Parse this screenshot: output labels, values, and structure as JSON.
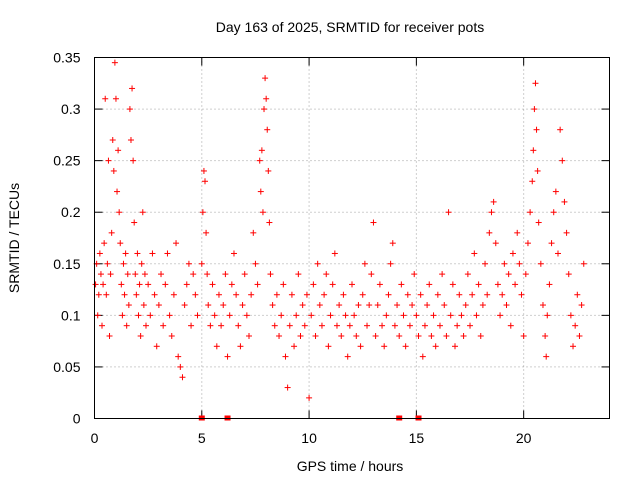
{
  "chart_data": {
    "type": "scatter",
    "title": "Day 163 of 2025, SRMTID for receiver pots",
    "xlabel": "GPS time / hours",
    "ylabel": "SRMTID / TECUs",
    "xlim": [
      0,
      24
    ],
    "ylim": [
      0,
      0.35
    ],
    "x_ticks": [
      0,
      5,
      10,
      15,
      20
    ],
    "x_tick_labels": [
      "0",
      "5",
      "10",
      "15",
      "20"
    ],
    "y_ticks": [
      0,
      0.05,
      0.1,
      0.15,
      0.2,
      0.25,
      0.3,
      0.35
    ],
    "y_tick_labels": [
      "0",
      "0.05",
      "0.1",
      "0.15",
      "0.2",
      "0.25",
      "0.3",
      "0.35"
    ],
    "grid": true,
    "marker": "+",
    "color": "#ff0000",
    "series": [
      {
        "name": "SRMTID",
        "points": [
          [
            0.05,
            0.13
          ],
          [
            0.1,
            0.15
          ],
          [
            0.15,
            0.1
          ],
          [
            0.2,
            0.12
          ],
          [
            0.25,
            0.16
          ],
          [
            0.3,
            0.14
          ],
          [
            0.35,
            0.09
          ],
          [
            0.4,
            0.13
          ],
          [
            0.45,
            0.17
          ],
          [
            0.5,
            0.31
          ],
          [
            0.55,
            0.12
          ],
          [
            0.6,
            0.15
          ],
          [
            0.65,
            0.25
          ],
          [
            0.7,
            0.08
          ],
          [
            0.75,
            0.14
          ],
          [
            0.8,
            0.18
          ],
          [
            0.85,
            0.27
          ],
          [
            0.9,
            0.24
          ],
          [
            0.95,
            0.345
          ],
          [
            1.0,
            0.31
          ],
          [
            1.05,
            0.22
          ],
          [
            1.1,
            0.26
          ],
          [
            1.15,
            0.2
          ],
          [
            1.2,
            0.17
          ],
          [
            1.25,
            0.13
          ],
          [
            1.3,
            0.1
          ],
          [
            1.35,
            0.15
          ],
          [
            1.4,
            0.12
          ],
          [
            1.45,
            0.16
          ],
          [
            1.5,
            0.09
          ],
          [
            1.55,
            0.14
          ],
          [
            1.6,
            0.11
          ],
          [
            1.65,
            0.3
          ],
          [
            1.7,
            0.27
          ],
          [
            1.75,
            0.32
          ],
          [
            1.8,
            0.25
          ],
          [
            1.85,
            0.19
          ],
          [
            1.9,
            0.14
          ],
          [
            1.95,
            0.12
          ],
          [
            2.0,
            0.16
          ],
          [
            2.05,
            0.1
          ],
          [
            2.1,
            0.13
          ],
          [
            2.15,
            0.08
          ],
          [
            2.2,
            0.15
          ],
          [
            2.25,
            0.2
          ],
          [
            2.3,
            0.11
          ],
          [
            2.35,
            0.14
          ],
          [
            2.4,
            0.09
          ],
          [
            2.5,
            0.13
          ],
          [
            2.6,
            0.1
          ],
          [
            2.7,
            0.16
          ],
          [
            2.8,
            0.12
          ],
          [
            2.9,
            0.07
          ],
          [
            3.0,
            0.11
          ],
          [
            3.1,
            0.14
          ],
          [
            3.2,
            0.09
          ],
          [
            3.3,
            0.13
          ],
          [
            3.4,
            0.16
          ],
          [
            3.5,
            0.1
          ],
          [
            3.6,
            0.08
          ],
          [
            3.7,
            0.12
          ],
          [
            3.8,
            0.17
          ],
          [
            3.9,
            0.06
          ],
          [
            4.0,
            0.05
          ],
          [
            4.1,
            0.04
          ],
          [
            4.2,
            0.11
          ],
          [
            4.3,
            0.13
          ],
          [
            4.4,
            0.15
          ],
          [
            4.5,
            0.09
          ],
          [
            4.6,
            0.14
          ],
          [
            4.7,
            0.12
          ],
          [
            4.8,
            0.1
          ],
          [
            5.0,
            0.15
          ],
          [
            5.05,
            0.2
          ],
          [
            5.1,
            0.24
          ],
          [
            5.15,
            0.23
          ],
          [
            5.2,
            0.18
          ],
          [
            5.25,
            0.14
          ],
          [
            5.3,
            0.11
          ],
          [
            5.4,
            0.09
          ],
          [
            5.5,
            0.13
          ],
          [
            5.6,
            0.1
          ],
          [
            5.7,
            0.07
          ],
          [
            5.8,
            0.12
          ],
          [
            5.9,
            0.09
          ],
          [
            6.0,
            0.11
          ],
          [
            6.1,
            0.14
          ],
          [
            6.2,
            0.06
          ],
          [
            6.3,
            0.1
          ],
          [
            6.4,
            0.13
          ],
          [
            6.5,
            0.16
          ],
          [
            6.6,
            0.12
          ],
          [
            6.7,
            0.09
          ],
          [
            6.8,
            0.07
          ],
          [
            6.9,
            0.11
          ],
          [
            7.0,
            0.14
          ],
          [
            7.1,
            0.1
          ],
          [
            7.2,
            0.08
          ],
          [
            7.3,
            0.12
          ],
          [
            7.4,
            0.18
          ],
          [
            7.5,
            0.15
          ],
          [
            7.6,
            0.13
          ],
          [
            7.7,
            0.25
          ],
          [
            7.75,
            0.22
          ],
          [
            7.8,
            0.26
          ],
          [
            7.85,
            0.2
          ],
          [
            7.9,
            0.3
          ],
          [
            7.95,
            0.33
          ],
          [
            8.0,
            0.31
          ],
          [
            8.05,
            0.28
          ],
          [
            8.1,
            0.24
          ],
          [
            8.15,
            0.19
          ],
          [
            8.2,
            0.14
          ],
          [
            8.3,
            0.11
          ],
          [
            8.4,
            0.09
          ],
          [
            8.5,
            0.12
          ],
          [
            8.6,
            0.08
          ],
          [
            8.7,
            0.1
          ],
          [
            8.8,
            0.13
          ],
          [
            8.9,
            0.06
          ],
          [
            9.0,
            0.03
          ],
          [
            9.1,
            0.09
          ],
          [
            9.2,
            0.12
          ],
          [
            9.3,
            0.07
          ],
          [
            9.4,
            0.1
          ],
          [
            9.5,
            0.14
          ],
          [
            9.6,
            0.08
          ],
          [
            9.7,
            0.11
          ],
          [
            9.8,
            0.09
          ],
          [
            9.9,
            0.12
          ],
          [
            10.0,
            0.02
          ],
          [
            10.1,
            0.1
          ],
          [
            10.2,
            0.13
          ],
          [
            10.3,
            0.08
          ],
          [
            10.4,
            0.15
          ],
          [
            10.5,
            0.11
          ],
          [
            10.6,
            0.09
          ],
          [
            10.7,
            0.12
          ],
          [
            10.8,
            0.14
          ],
          [
            10.9,
            0.07
          ],
          [
            11.0,
            0.1
          ],
          [
            11.1,
            0.13
          ],
          [
            11.2,
            0.16
          ],
          [
            11.3,
            0.09
          ],
          [
            11.4,
            0.11
          ],
          [
            11.5,
            0.08
          ],
          [
            11.6,
            0.12
          ],
          [
            11.7,
            0.1
          ],
          [
            11.8,
            0.06
          ],
          [
            11.9,
            0.09
          ],
          [
            12.0,
            0.13
          ],
          [
            12.1,
            0.1
          ],
          [
            12.2,
            0.08
          ],
          [
            12.3,
            0.11
          ],
          [
            12.4,
            0.07
          ],
          [
            12.5,
            0.12
          ],
          [
            12.6,
            0.15
          ],
          [
            12.7,
            0.09
          ],
          [
            12.8,
            0.11
          ],
          [
            12.9,
            0.14
          ],
          [
            13.0,
            0.19
          ],
          [
            13.1,
            0.08
          ],
          [
            13.2,
            0.11
          ],
          [
            13.3,
            0.13
          ],
          [
            13.4,
            0.09
          ],
          [
            13.5,
            0.07
          ],
          [
            13.6,
            0.1
          ],
          [
            13.7,
            0.12
          ],
          [
            13.8,
            0.15
          ],
          [
            13.9,
            0.17
          ],
          [
            14.0,
            0.09
          ],
          [
            14.1,
            0.11
          ],
          [
            14.2,
            0.08
          ],
          [
            14.3,
            0.13
          ],
          [
            14.4,
            0.1
          ],
          [
            14.5,
            0.07
          ],
          [
            14.6,
            0.12
          ],
          [
            14.7,
            0.09
          ],
          [
            14.8,
            0.11
          ],
          [
            14.9,
            0.14
          ],
          [
            15.0,
            0.1
          ],
          [
            15.1,
            0.08
          ],
          [
            15.2,
            0.12
          ],
          [
            15.3,
            0.06
          ],
          [
            15.4,
            0.09
          ],
          [
            15.5,
            0.11
          ],
          [
            15.6,
            0.13
          ],
          [
            15.7,
            0.08
          ],
          [
            15.8,
            0.1
          ],
          [
            15.9,
            0.07
          ],
          [
            16.0,
            0.12
          ],
          [
            16.1,
            0.09
          ],
          [
            16.2,
            0.14
          ],
          [
            16.3,
            0.11
          ],
          [
            16.4,
            0.08
          ],
          [
            16.5,
            0.2
          ],
          [
            16.6,
            0.1
          ],
          [
            16.7,
            0.13
          ],
          [
            16.8,
            0.07
          ],
          [
            16.9,
            0.09
          ],
          [
            17.0,
            0.12
          ],
          [
            17.1,
            0.1
          ],
          [
            17.2,
            0.08
          ],
          [
            17.3,
            0.11
          ],
          [
            17.4,
            0.14
          ],
          [
            17.5,
            0.09
          ],
          [
            17.6,
            0.12
          ],
          [
            17.7,
            0.16
          ],
          [
            17.8,
            0.1
          ],
          [
            17.9,
            0.13
          ],
          [
            18.0,
            0.08
          ],
          [
            18.1,
            0.11
          ],
          [
            18.2,
            0.15
          ],
          [
            18.3,
            0.12
          ],
          [
            18.4,
            0.18
          ],
          [
            18.5,
            0.2
          ],
          [
            18.6,
            0.21
          ],
          [
            18.7,
            0.17
          ],
          [
            18.8,
            0.13
          ],
          [
            18.9,
            0.1
          ],
          [
            19.0,
            0.12
          ],
          [
            19.1,
            0.15
          ],
          [
            19.2,
            0.11
          ],
          [
            19.3,
            0.14
          ],
          [
            19.4,
            0.09
          ],
          [
            19.5,
            0.16
          ],
          [
            19.6,
            0.13
          ],
          [
            19.7,
            0.18
          ],
          [
            19.8,
            0.15
          ],
          [
            19.9,
            0.12
          ],
          [
            20.0,
            0.08
          ],
          [
            20.1,
            0.14
          ],
          [
            20.2,
            0.17
          ],
          [
            20.3,
            0.2
          ],
          [
            20.4,
            0.23
          ],
          [
            20.45,
            0.26
          ],
          [
            20.5,
            0.3
          ],
          [
            20.55,
            0.325
          ],
          [
            20.6,
            0.28
          ],
          [
            20.65,
            0.24
          ],
          [
            20.7,
            0.19
          ],
          [
            20.8,
            0.15
          ],
          [
            20.9,
            0.11
          ],
          [
            21.0,
            0.08
          ],
          [
            21.05,
            0.06
          ],
          [
            21.1,
            0.1
          ],
          [
            21.2,
            0.13
          ],
          [
            21.3,
            0.17
          ],
          [
            21.4,
            0.2
          ],
          [
            21.5,
            0.22
          ],
          [
            21.6,
            0.16
          ],
          [
            21.7,
            0.28
          ],
          [
            21.8,
            0.25
          ],
          [
            21.9,
            0.21
          ],
          [
            22.0,
            0.18
          ],
          [
            22.1,
            0.14
          ],
          [
            22.2,
            0.1
          ],
          [
            22.3,
            0.07
          ],
          [
            22.4,
            0.09
          ],
          [
            22.5,
            0.12
          ],
          [
            22.6,
            0.08
          ],
          [
            22.7,
            0.11
          ],
          [
            22.8,
            0.15
          ]
        ]
      }
    ],
    "zero_markers_x": [
      5.0,
      6.2,
      14.2,
      15.1
    ]
  }
}
